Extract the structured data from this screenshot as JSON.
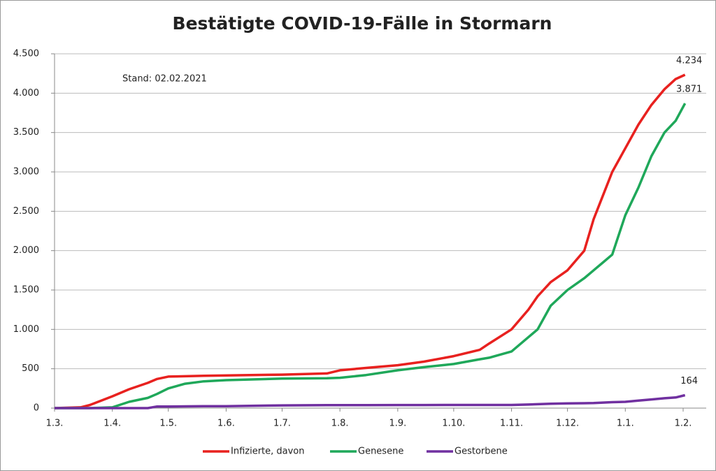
{
  "chart_data": {
    "type": "line",
    "title": "Bestätigte COVID-19-Fälle in Stormarn",
    "annotation": "Stand: 02.02.2021",
    "x": [
      "1.3.",
      "15.3.",
      "20.3.",
      "1.4.",
      "10.4.",
      "20.4.",
      "25.4.",
      "1.5.",
      "10.5.",
      "20.5.",
      "1.6.",
      "1.7.",
      "25.7.",
      "1.8.",
      "15.8.",
      "1.9.",
      "15.9.",
      "1.10.",
      "15.10.",
      "20.10.",
      "1.11.",
      "10.11.",
      "15.11.",
      "22.11.",
      "1.12.",
      "10.12.",
      "15.12.",
      "20.12.",
      "25.12.",
      "1.1.",
      "8.1.",
      "15.1.",
      "22.1.",
      "28.1.",
      "2.2."
    ],
    "series": [
      {
        "name": "Infizierte, davon",
        "color": "#e8211f",
        "values": [
          0,
          10,
          40,
          150,
          240,
          320,
          370,
          400,
          405,
          410,
          415,
          425,
          440,
          480,
          510,
          545,
          590,
          660,
          740,
          820,
          1000,
          1250,
          1420,
          1600,
          1750,
          2000,
          2400,
          2700,
          3000,
          3300,
          3600,
          3850,
          4050,
          4180,
          4234
        ],
        "value_labels": [
          null,
          null,
          null,
          null,
          null,
          null,
          null,
          null,
          null,
          null,
          null,
          null,
          null,
          null,
          null,
          null,
          null,
          null,
          null,
          null,
          null,
          null,
          null,
          null,
          null,
          null,
          null,
          null,
          null,
          null,
          null,
          null,
          null,
          null,
          "4.234"
        ]
      },
      {
        "name": "Genesene",
        "color": "#1fa85a",
        "values": [
          0,
          0,
          0,
          10,
          80,
          130,
          180,
          250,
          310,
          340,
          355,
          375,
          380,
          385,
          420,
          480,
          520,
          560,
          620,
          640,
          720,
          900,
          1000,
          1300,
          1500,
          1650,
          1750,
          1850,
          1950,
          2450,
          2800,
          3200,
          3500,
          3650,
          3871
        ],
        "value_labels": [
          null,
          null,
          null,
          null,
          null,
          null,
          null,
          null,
          null,
          null,
          null,
          null,
          null,
          null,
          null,
          null,
          null,
          null,
          null,
          null,
          null,
          null,
          null,
          null,
          null,
          null,
          null,
          null,
          null,
          null,
          null,
          null,
          null,
          null,
          "3.871"
        ]
      },
      {
        "name": "Gestorbene",
        "color": "#7030a0",
        "values": [
          0,
          0,
          0,
          0,
          0,
          0,
          20,
          20,
          22,
          24,
          25,
          35,
          38,
          38,
          38,
          39,
          39,
          40,
          40,
          40,
          40,
          45,
          50,
          55,
          60,
          62,
          65,
          70,
          75,
          80,
          95,
          110,
          125,
          135,
          164
        ],
        "value_labels": [
          null,
          null,
          null,
          null,
          null,
          null,
          null,
          null,
          null,
          null,
          null,
          null,
          null,
          null,
          null,
          null,
          null,
          null,
          null,
          null,
          null,
          null,
          null,
          null,
          null,
          null,
          null,
          null,
          null,
          null,
          null,
          null,
          null,
          null,
          "164"
        ]
      }
    ],
    "xlim": [
      "1.3.",
      "1.2."
    ],
    "xticks": [
      "1.3.",
      "1.4.",
      "1.5.",
      "1.6.",
      "1.7.",
      "1.8.",
      "1.9.",
      "1.10.",
      "1.11.",
      "1.12.",
      "1.1.",
      "1.2."
    ],
    "ylim": [
      0,
      4500
    ],
    "yticks": [
      0,
      500,
      {
        "value": 1000,
        "label": "1.000"
      },
      {
        "value": 1500,
        "label": "1.500"
      },
      {
        "value": 2000,
        "label": "2.000"
      },
      {
        "value": 2500,
        "label": "2.500"
      },
      {
        "value": 3000,
        "label": "3.000"
      },
      {
        "value": 3500,
        "label": "3.500"
      },
      {
        "value": 4000,
        "label": "4.000"
      },
      {
        "value": 4500,
        "label": "4.500"
      }
    ],
    "grid": true,
    "legend": "bottom"
  }
}
